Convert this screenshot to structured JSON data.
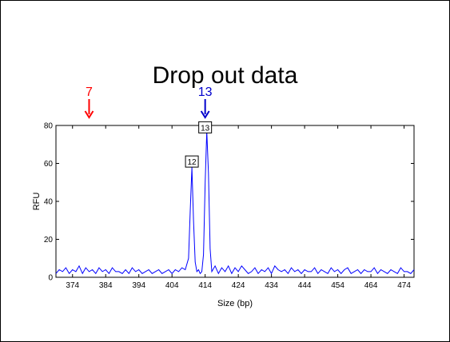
{
  "slide": {
    "title": "Drop out data"
  },
  "markers": [
    {
      "label": "7",
      "color": "#ff0000",
      "x": 379
    },
    {
      "label": "13",
      "color": "#0000cc",
      "x": 414
    }
  ],
  "colors": {
    "trace": "#0000ff",
    "axis": "#000000"
  },
  "chart_data": {
    "type": "line",
    "xlabel": "Size (bp)",
    "ylabel": "RFU",
    "xlim": [
      369,
      477
    ],
    "ylim": [
      0,
      80
    ],
    "xticks": [
      374,
      384,
      394,
      404,
      414,
      424,
      434,
      444,
      454,
      464,
      474
    ],
    "yticks": [
      0,
      20,
      40,
      60,
      80
    ],
    "grid": false,
    "series": [
      {
        "x": [
          369,
          370,
          371,
          372,
          373,
          374,
          375,
          376,
          377,
          378,
          379,
          380,
          381,
          382,
          383,
          384,
          385,
          386,
          387,
          388,
          389,
          390,
          391,
          392,
          393,
          394,
          395,
          396,
          397,
          398,
          399,
          400,
          401,
          402,
          403,
          404,
          405,
          406,
          407,
          408,
          409,
          409.5,
          410,
          410.5,
          411,
          411.5,
          412,
          412.5,
          413,
          413.5,
          414,
          414.5,
          415,
          415.5,
          416,
          417,
          418,
          419,
          420,
          421,
          422,
          423,
          424,
          425,
          426,
          427,
          428,
          429,
          430,
          431,
          432,
          433,
          434,
          435,
          436,
          437,
          438,
          439,
          440,
          441,
          442,
          443,
          444,
          445,
          446,
          447,
          448,
          449,
          450,
          451,
          452,
          453,
          454,
          455,
          456,
          457,
          458,
          459,
          460,
          461,
          462,
          463,
          464,
          465,
          466,
          467,
          468,
          469,
          470,
          471,
          472,
          473,
          474,
          475,
          476,
          477
        ],
        "values": [
          2,
          4,
          3,
          5,
          2,
          4,
          3,
          6,
          2,
          5,
          3,
          4,
          2,
          5,
          3,
          4,
          2,
          5,
          3,
          3,
          2,
          4,
          2,
          5,
          3,
          4,
          2,
          3,
          4,
          2,
          3,
          4,
          2,
          3,
          4,
          2,
          4,
          3,
          5,
          4,
          10,
          35,
          58,
          30,
          8,
          3,
          4,
          2,
          3,
          12,
          50,
          77,
          55,
          15,
          3,
          6,
          2,
          5,
          3,
          6,
          2,
          5,
          3,
          6,
          4,
          2,
          3,
          5,
          2,
          4,
          3,
          5,
          2,
          6,
          4,
          3,
          4,
          2,
          5,
          3,
          4,
          2,
          4,
          3,
          3,
          5,
          2,
          4,
          3,
          2,
          5,
          3,
          4,
          2,
          4,
          5,
          2,
          3,
          4,
          2,
          4,
          3,
          3,
          5,
          2,
          4,
          3,
          2,
          4,
          3,
          2,
          5,
          3,
          3,
          2,
          4
        ]
      }
    ],
    "annotations": [
      {
        "label": "12",
        "x": 410,
        "y": 61
      },
      {
        "label": "13",
        "x": 414,
        "y": 79
      }
    ]
  }
}
